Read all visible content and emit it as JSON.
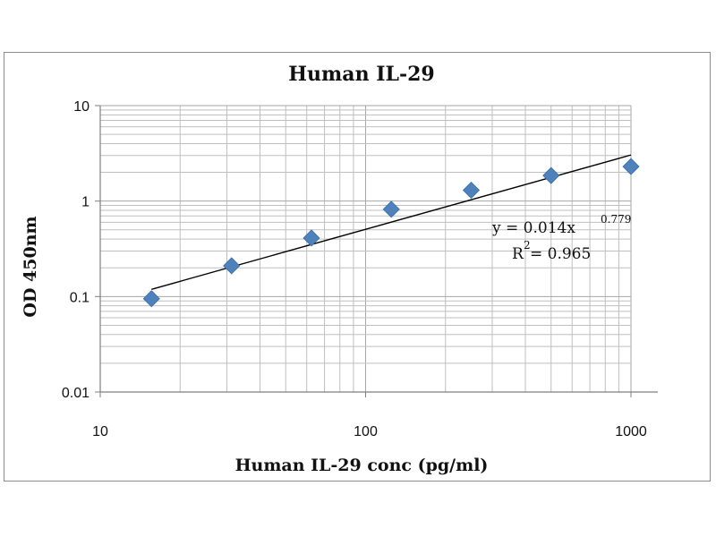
{
  "chart_data": {
    "type": "scatter",
    "title": "Human IL-29",
    "xlabel": "Human IL-29 conc (pg/ml)",
    "ylabel": "OD 450nm",
    "x_scale": "log",
    "y_scale": "log",
    "xlim": [
      10,
      1000
    ],
    "ylim": [
      0.01,
      10
    ],
    "x_ticks": [
      "10",
      "100",
      "1000"
    ],
    "y_ticks": [
      "10",
      "1",
      "0.1",
      "0.01"
    ],
    "grid": true,
    "legend": "none",
    "series": [
      {
        "color": "#4f81bd",
        "marker": "diamond",
        "x": [
          15.6,
          31.25,
          62.5,
          125,
          250,
          500,
          1000
        ],
        "y": [
          0.095,
          0.21,
          0.41,
          0.82,
          1.3,
          1.85,
          2.3
        ]
      }
    ],
    "trendline": {
      "type": "power",
      "coefficient": 0.014,
      "exponent": 0.779,
      "x_range": [
        15.6,
        1000
      ],
      "color": "#000000",
      "equation_text": "y = 0.014x",
      "exponent_text": "0.779",
      "r2_label": "R",
      "r2_sup": "2",
      "r2_value_text": " = 0.965"
    },
    "grid_color": "#bfbfbf",
    "axis_color": "#7f7f7f"
  }
}
